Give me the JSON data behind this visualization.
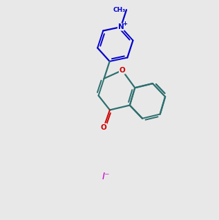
{
  "bg_color": "#e8e8e8",
  "bond_color": "#2d6e6e",
  "pyridinium_color": "#0000cc",
  "oxygen_color": "#cc0000",
  "iodide_color": "#cc00cc",
  "lw": 1.6,
  "lw_dbl": 1.4,
  "dbl_sep": 0.1
}
